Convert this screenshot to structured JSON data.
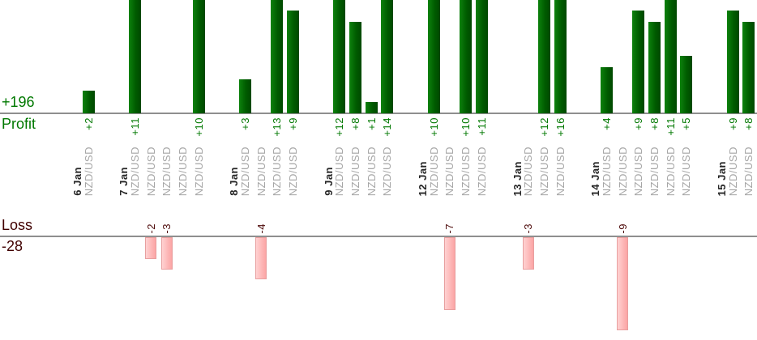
{
  "chart_data": {
    "type": "bar",
    "orientation": "vertical-dual-baseline",
    "title": "",
    "series_symbol": "NZD/USD",
    "profit": {
      "label": "Profit",
      "total": "+196"
    },
    "loss": {
      "label": "Loss",
      "total": "-28"
    },
    "groups": [
      {
        "date": "6 Jan",
        "trades": [
          2
        ]
      },
      {
        "date": "7 Jan",
        "trades": [
          11,
          -2,
          -3,
          0,
          10
        ]
      },
      {
        "date": "8 Jan",
        "trades": [
          3,
          -4,
          13,
          9
        ]
      },
      {
        "date": "9 Jan",
        "trades": [
          12,
          8,
          1,
          14
        ]
      },
      {
        "date": "12 Jan",
        "trades": [
          10,
          -7,
          10,
          11
        ]
      },
      {
        "date": "13 Jan",
        "trades": [
          -3,
          12,
          16
        ]
      },
      {
        "date": "14 Jan",
        "trades": [
          4,
          -9,
          9,
          8,
          11,
          5
        ]
      },
      {
        "date": "15 Jan",
        "trades": [
          9,
          8
        ]
      }
    ],
    "colors": {
      "profit_bar": "#006600",
      "profit_text": "#007800",
      "loss_bar_fill": "#fbb4b4",
      "loss_bar_border": "#e89f9f",
      "loss_text": "#4c0808",
      "date_text": "#262626",
      "symbol_text": "#a6a6a6",
      "baseline": "#8f8f8f"
    },
    "notes": {
      "profit_bars_clipped_at_top": true,
      "zero_value_trades_have_no_bar": true
    }
  }
}
